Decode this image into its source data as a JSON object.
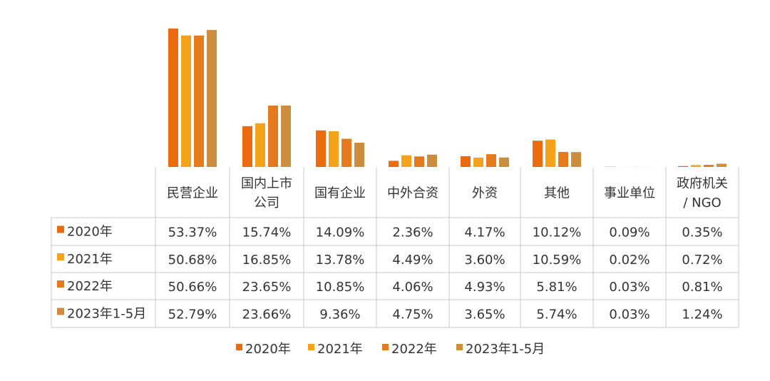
{
  "colors": {
    "series": [
      "#EB6A0E",
      "#F4A219",
      "#E57A1C",
      "#CC8E3E"
    ],
    "grid": "#c9c9c9",
    "text": "#333333"
  },
  "chart_data": {
    "type": "bar",
    "title": "",
    "xlabel": "",
    "ylabel": "",
    "ylim": [
      0,
      55
    ],
    "grid": false,
    "legend_position": "bottom-center",
    "data_table": true,
    "categories": [
      [
        "民营企业"
      ],
      [
        "国内上市",
        "公司"
      ],
      [
        "国有企业"
      ],
      [
        "中外合资"
      ],
      [
        "外资"
      ],
      [
        "其他"
      ],
      [
        "事业单位"
      ],
      [
        "政府机关",
        "/ NGO"
      ]
    ],
    "series": [
      {
        "name": "2020年",
        "values": [
          53.37,
          15.74,
          14.09,
          2.36,
          4.17,
          10.12,
          0.09,
          0.35
        ],
        "labels": [
          "53.37%",
          "15.74%",
          "14.09%",
          "2.36%",
          "4.17%",
          "10.12%",
          "0.09%",
          "0.35%"
        ]
      },
      {
        "name": "2021年",
        "values": [
          50.68,
          16.85,
          13.78,
          4.49,
          3.6,
          10.59,
          0.02,
          0.72
        ],
        "labels": [
          "50.68%",
          "16.85%",
          "13.78%",
          "4.49%",
          "3.60%",
          "10.59%",
          "0.02%",
          "0.72%"
        ]
      },
      {
        "name": "2022年",
        "values": [
          50.66,
          23.65,
          10.85,
          4.06,
          4.93,
          5.81,
          0.03,
          0.81
        ],
        "labels": [
          "50.66%",
          "23.65%",
          "10.85%",
          "4.06%",
          "4.93%",
          "5.81%",
          "0.03%",
          "0.81%"
        ]
      },
      {
        "name": "2023年1-5月",
        "values": [
          52.79,
          23.66,
          9.36,
          4.75,
          3.65,
          5.74,
          0.03,
          1.24
        ],
        "labels": [
          "52.79%",
          "23.66%",
          "9.36%",
          "4.75%",
          "3.65%",
          "5.74%",
          "0.03%",
          "1.24%"
        ]
      }
    ]
  }
}
